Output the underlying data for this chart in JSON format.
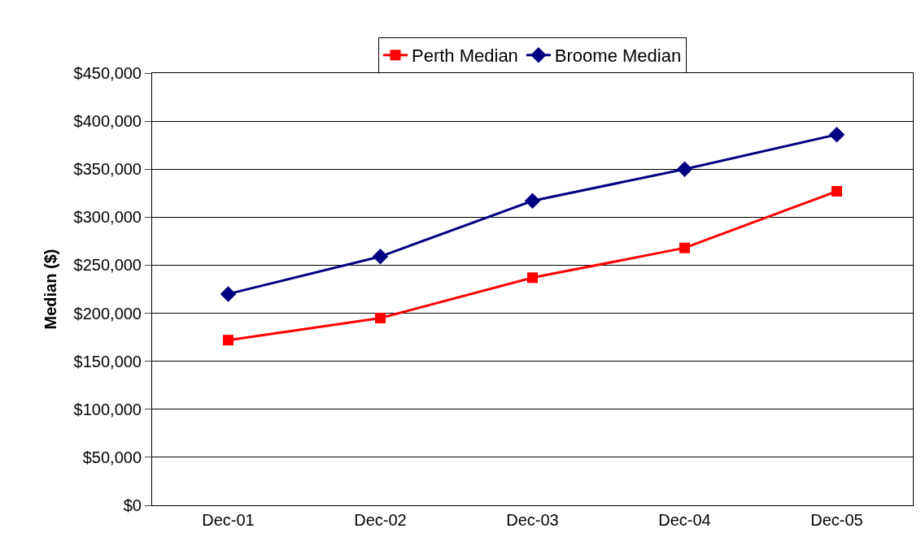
{
  "chart_data": {
    "type": "line",
    "ylabel": "Median ($)",
    "categories": [
      "Dec-01",
      "Dec-02",
      "Dec-03",
      "Dec-04",
      "Dec-05"
    ],
    "series": [
      {
        "name": "Perth Median",
        "color": "#ff0000",
        "marker": "square",
        "values": [
          172000,
          195000,
          237000,
          268000,
          327000
        ]
      },
      {
        "name": "Broome Median",
        "color": "#000080",
        "marker": "diamond",
        "values": [
          220000,
          259000,
          317000,
          350000,
          386000
        ]
      }
    ],
    "ylim": [
      0,
      450000
    ],
    "yticks": [
      {
        "value": 0,
        "label": "$0"
      },
      {
        "value": 50000,
        "label": "$50,000"
      },
      {
        "value": 100000,
        "label": "$100,000"
      },
      {
        "value": 150000,
        "label": "$150,000"
      },
      {
        "value": 200000,
        "label": "$200,000"
      },
      {
        "value": 250000,
        "label": "$250,000"
      },
      {
        "value": 300000,
        "label": "$300,000"
      },
      {
        "value": 350000,
        "label": "$350,000"
      },
      {
        "value": 400000,
        "label": "$400,000"
      },
      {
        "value": 450000,
        "label": "$450,000"
      }
    ],
    "grid": "y",
    "legend": "top",
    "line_style": "solid"
  }
}
